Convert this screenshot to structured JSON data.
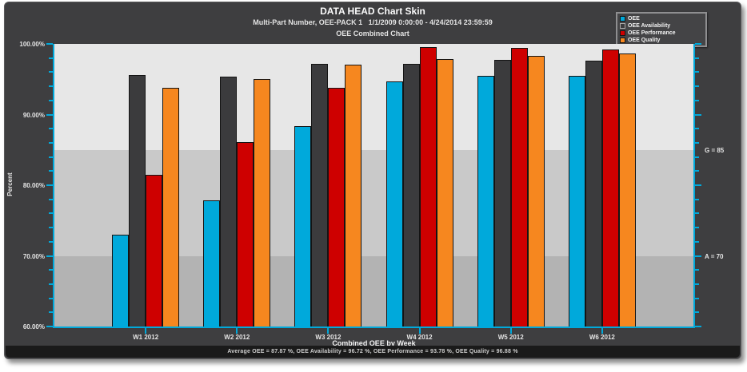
{
  "header": {
    "title": "DATA HEAD Chart Skin",
    "subtitle": "Multi-Part Number, OEE-PACK 1   1/1/2009 0:00:00 - 4/24/2014 23:59:59",
    "chart_name": "OEE Combined Chart"
  },
  "legend": {
    "items": [
      {
        "label": "OEE",
        "color": "#00A9DB"
      },
      {
        "label": "OEE Availability",
        "color": "#3B3B3D",
        "border": "#ABABAB"
      },
      {
        "label": "OEE Performance",
        "color": "#CE0000"
      },
      {
        "label": "OEE Quality",
        "color": "#F6871F"
      }
    ]
  },
  "axes": {
    "y_title": "Percent",
    "x_title": "Combined OEE by Week",
    "y_ticks": [
      {
        "value": 100,
        "label": "100.00%"
      },
      {
        "value": 90,
        "label": "90.00%"
      },
      {
        "value": 80,
        "label": "80.00%"
      },
      {
        "value": 70,
        "label": "70.00%"
      },
      {
        "value": 60,
        "label": "60.00%"
      }
    ],
    "right_labels": [
      {
        "value": 85,
        "text": "G = 85"
      },
      {
        "value": 70,
        "text": "A = 70"
      }
    ]
  },
  "footer": {
    "summary": "Average OEE = 87.87 %,  OEE Availability = 96.72 %,  OEE Performance = 93.78 %,  OEE Quality = 96.88 %"
  },
  "chart_data": {
    "type": "bar",
    "title": "OEE Combined Chart",
    "xlabel": "Combined OEE by Week",
    "ylabel": "Percent",
    "ylim": [
      60,
      100
    ],
    "y_major_step": 10,
    "y_minor_step": 2,
    "grid": false,
    "legend_position": "top-right",
    "categories": [
      "W1 2012",
      "W2 2012",
      "W3 2012",
      "W4 2012",
      "W5 2012",
      "W6 2012"
    ],
    "series": [
      {
        "name": "OEE",
        "color": "#00A9DB",
        "values": [
          73.0,
          77.8,
          88.4,
          94.7,
          95.5,
          95.5
        ]
      },
      {
        "name": "OEE Availability",
        "color": "#3B3B3D",
        "values": [
          95.6,
          95.4,
          97.2,
          97.2,
          97.7,
          97.6
        ]
      },
      {
        "name": "OEE Performance",
        "color": "#CE0000",
        "values": [
          81.5,
          86.1,
          93.8,
          99.6,
          99.4,
          99.2
        ]
      },
      {
        "name": "OEE Quality",
        "color": "#F6871F",
        "values": [
          93.8,
          95.0,
          97.1,
          97.8,
          98.3,
          98.6
        ]
      }
    ],
    "bands": [
      {
        "from": 85,
        "to": 100,
        "color": "#E7E7E7",
        "label": "G = 85"
      },
      {
        "from": 70,
        "to": 85,
        "color": "#C9C9C9",
        "label": "A = 70"
      },
      {
        "from": 60,
        "to": 70,
        "color": "#B3B3B3"
      }
    ],
    "axis_color": "#00A9DB"
  }
}
